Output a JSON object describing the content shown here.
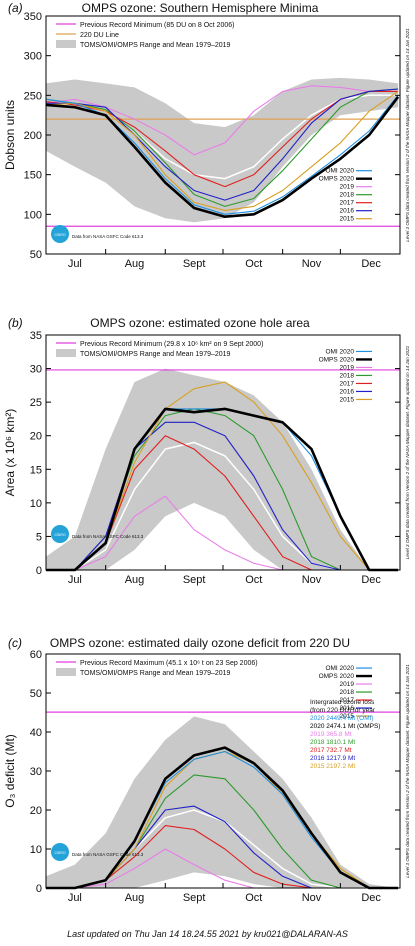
{
  "footer": "Last updated on Thu Jan 14 18.24.55 2021 by kru021@DALARAN-AS",
  "months": [
    "Jul",
    "Aug",
    "Sept",
    "Oct",
    "Nov",
    "Dec"
  ],
  "colors": {
    "OMI 2020": "#1f8fe0",
    "OMPS 2020": "#000000",
    "2019": "#e87ee8",
    "2018": "#2e9a2e",
    "2017": "#e02020",
    "2016": "#2020c8",
    "2015": "#d8a020",
    "band": "#c9c9c9",
    "mean": "#ffffff",
    "record": "#e040e0",
    "ref220": "#e0a050"
  },
  "chart_data": [
    {
      "type": "line",
      "panel": "(a)",
      "title": "OMPS ozone: Southern Hemisphere Minima",
      "ylabel": "Dobson units",
      "ylim": [
        50,
        350
      ],
      "yticks": [
        50,
        100,
        150,
        200,
        250,
        300,
        350
      ],
      "legend_top": [
        "Previous Record Minimum (85 DU on 8 Oct 2006)",
        "220 DU Line",
        "TOMS/OMI/OMPS Range and Mean 1979–2019"
      ],
      "legend_series": [
        "OMI 2020",
        "OMPS 2020",
        "2019",
        "2018",
        "2017",
        "2016",
        "2015"
      ],
      "reference_lines": [
        {
          "name": "Previous Record Minimum",
          "value": 85
        },
        {
          "name": "220 DU Line",
          "value": 220
        }
      ],
      "side_note": "Level 3 OMPS data created from Version 2 of the NASA Mapper dataset. Figure updated on 14 Jan 2021",
      "csiro_note": "Data from NASA GSFC Code 613.3",
      "x": [
        0,
        15,
        31,
        46,
        62,
        77,
        93,
        108,
        123,
        138,
        153,
        168,
        183
      ],
      "band": {
        "low": [
          180,
          160,
          140,
          110,
          95,
          90,
          95,
          115,
          160,
          200,
          225,
          230,
          235
        ],
        "high": [
          265,
          270,
          265,
          260,
          240,
          215,
          210,
          225,
          255,
          270,
          272,
          270,
          265
        ]
      },
      "mean": [
        240,
        238,
        230,
        205,
        170,
        150,
        145,
        160,
        195,
        225,
        245,
        250,
        250
      ],
      "series": [
        {
          "name": "OMPS 2020",
          "values": [
            238,
            235,
            225,
            185,
            140,
            108,
            97,
            100,
            118,
            145,
            170,
            200,
            248
          ]
        },
        {
          "name": "OMI 2020",
          "values": [
            245,
            240,
            225,
            190,
            145,
            112,
            100,
            104,
            122,
            148,
            175,
            205,
            250
          ]
        },
        {
          "name": "2019",
          "values": [
            240,
            245,
            235,
            220,
            200,
            175,
            190,
            230,
            255,
            262,
            260,
            255,
            255
          ]
        },
        {
          "name": "2018",
          "values": [
            245,
            240,
            232,
            205,
            165,
            125,
            110,
            120,
            155,
            195,
            235,
            255,
            258
          ]
        },
        {
          "name": "2017",
          "values": [
            242,
            238,
            230,
            210,
            180,
            150,
            135,
            150,
            185,
            220,
            245,
            255,
            255
          ]
        },
        {
          "name": "2016",
          "values": [
            240,
            240,
            235,
            200,
            160,
            130,
            118,
            130,
            170,
            215,
            245,
            255,
            258
          ]
        },
        {
          "name": "2015",
          "values": [
            238,
            240,
            230,
            200,
            150,
            115,
            105,
            110,
            130,
            160,
            190,
            230,
            255
          ]
        }
      ]
    },
    {
      "type": "line",
      "panel": "(b)",
      "title": "OMPS ozone: estimated ozone hole area",
      "ylabel": "Area (x 10⁶ km²)",
      "ylim": [
        0,
        35
      ],
      "yticks": [
        0,
        5,
        10,
        15,
        20,
        25,
        30,
        35
      ],
      "legend_top": [
        "Previous Record Minimum (29.8 x 10⁶ km² on 9 Sept 2000)",
        "TOMS/OMI/OMPS Range and Mean 1979–2019"
      ],
      "legend_series": [
        "OMI 2020",
        "OMPS 2020",
        "2019",
        "2018",
        "2017",
        "2016",
        "2015"
      ],
      "reference_lines": [
        {
          "name": "Previous Record Minimum",
          "value": 29.8
        }
      ],
      "side_note": "Level 3 OMPS data created from Version 2 of the NASA Mapper dataset. Figure updated on 14 Jan 2021",
      "csiro_note": "Data from NASA GSFC Code 613.3",
      "x": [
        0,
        15,
        31,
        46,
        62,
        77,
        93,
        108,
        123,
        138,
        153,
        168,
        183
      ],
      "band": {
        "low": [
          0,
          0,
          0,
          3,
          8,
          10,
          8,
          3,
          0,
          0,
          0,
          0,
          0
        ],
        "high": [
          2,
          5,
          18,
          28,
          30,
          29,
          28,
          26,
          22,
          15,
          6,
          0,
          0
        ]
      },
      "mean": [
        0,
        0,
        3,
        12,
        18,
        19,
        17,
        12,
        5,
        1,
        0,
        0,
        0
      ],
      "series": [
        {
          "name": "OMPS 2020",
          "values": [
            0,
            0,
            4,
            18,
            24,
            23.5,
            24,
            23,
            22,
            18,
            8,
            0,
            0
          ]
        },
        {
          "name": "OMI 2020",
          "values": [
            0,
            0,
            4,
            18,
            24,
            24,
            24,
            23,
            22,
            17,
            8,
            0,
            0
          ]
        },
        {
          "name": "2019",
          "values": [
            0,
            0,
            2,
            8,
            11,
            6,
            3,
            1,
            0,
            0,
            0,
            0,
            0
          ]
        },
        {
          "name": "2018",
          "values": [
            0,
            0,
            5,
            17,
            23,
            24,
            23,
            20,
            12,
            2,
            0,
            0,
            0
          ]
        },
        {
          "name": "2017",
          "values": [
            0,
            0,
            4,
            15,
            20,
            18,
            14,
            8,
            2,
            0,
            0,
            0,
            0
          ]
        },
        {
          "name": "2016",
          "values": [
            0,
            0,
            5,
            18,
            22,
            22,
            20,
            14,
            6,
            1,
            0,
            0,
            0
          ]
        },
        {
          "name": "2015",
          "values": [
            0,
            0,
            4,
            16,
            24,
            27,
            28,
            25,
            20,
            13,
            5,
            0,
            0
          ]
        }
      ]
    },
    {
      "type": "line",
      "panel": "(c)",
      "title": "OMPS ozone: estimated daily ozone deficit from 220 DU",
      "ylabel": "O₃ deficit (Mt)",
      "ylim": [
        0,
        60
      ],
      "yticks": [
        0,
        10,
        20,
        30,
        40,
        50,
        60
      ],
      "legend_top": [
        "Previous Record Maximum (45.1 x 10⁶ t on 23 Sep 2006)",
        "TOMS/OMI/OMPS Range and Mean 1979–2019"
      ],
      "legend_series": [
        "OMI 2020",
        "OMPS 2020",
        "2019",
        "2018",
        "2017",
        "2016",
        "2015"
      ],
      "reference_lines": [
        {
          "name": "Previous Record Maximum",
          "value": 45.1
        }
      ],
      "side_note": "Level 3 OMPS data created from Version 2 of the NASA Mapper dataset. Figure updated on 14 Jan 2021",
      "csiro_note": "Data from NASA GSFC Code 613.3",
      "integrated_title": [
        "Intergrated ozone loss",
        "(from 220 DU) for year"
      ],
      "integrated": [
        {
          "label": "2020 2449.4 Mt (OMI)",
          "series": "OMI 2020"
        },
        {
          "label": "2020 2474.1 Mt (OMPS)",
          "series": "OMPS 2020"
        },
        {
          "label": "2019 365.8 Mt",
          "series": "2019"
        },
        {
          "label": "2018 1810.1 Mt",
          "series": "2018"
        },
        {
          "label": "2017 732.7 Mt",
          "series": "2017"
        },
        {
          "label": "2016 1217.9 Mt",
          "series": "2016"
        },
        {
          "label": "2015 2197.2 Mt",
          "series": "2015"
        }
      ],
      "x": [
        0,
        15,
        31,
        46,
        62,
        77,
        93,
        108,
        123,
        138,
        153,
        168,
        183
      ],
      "band": {
        "low": [
          0,
          0,
          0,
          0,
          2,
          4,
          3,
          1,
          0,
          0,
          0,
          0,
          0
        ],
        "high": [
          3,
          6,
          14,
          28,
          38,
          44,
          42,
          35,
          28,
          18,
          6,
          1,
          0
        ]
      },
      "mean": [
        0,
        0,
        2,
        10,
        18,
        20,
        17,
        11,
        5,
        1,
        0,
        0,
        0
      ],
      "series": [
        {
          "name": "OMPS 2020",
          "values": [
            0,
            0,
            2,
            12,
            28,
            34,
            36,
            32,
            25,
            14,
            4,
            0,
            0
          ]
        },
        {
          "name": "OMI 2020",
          "values": [
            0,
            0,
            2,
            12,
            27,
            33,
            35,
            31,
            24,
            13,
            4,
            0,
            0
          ]
        },
        {
          "name": "2019",
          "values": [
            0,
            0,
            1,
            5,
            10,
            6,
            2,
            0,
            0,
            0,
            0,
            0,
            0
          ]
        },
        {
          "name": "2018",
          "values": [
            0,
            0,
            2,
            10,
            23,
            29,
            28,
            20,
            10,
            2,
            0,
            0,
            0
          ]
        },
        {
          "name": "2017",
          "values": [
            0,
            0,
            2,
            8,
            16,
            15,
            10,
            4,
            1,
            0,
            0,
            0,
            0
          ]
        },
        {
          "name": "2016",
          "values": [
            0,
            0,
            2,
            10,
            20,
            21,
            17,
            9,
            3,
            0,
            0,
            0,
            0
          ]
        },
        {
          "name": "2015",
          "values": [
            0,
            0,
            2,
            10,
            26,
            33,
            35,
            32,
            24,
            14,
            5,
            0,
            0
          ]
        }
      ]
    }
  ]
}
